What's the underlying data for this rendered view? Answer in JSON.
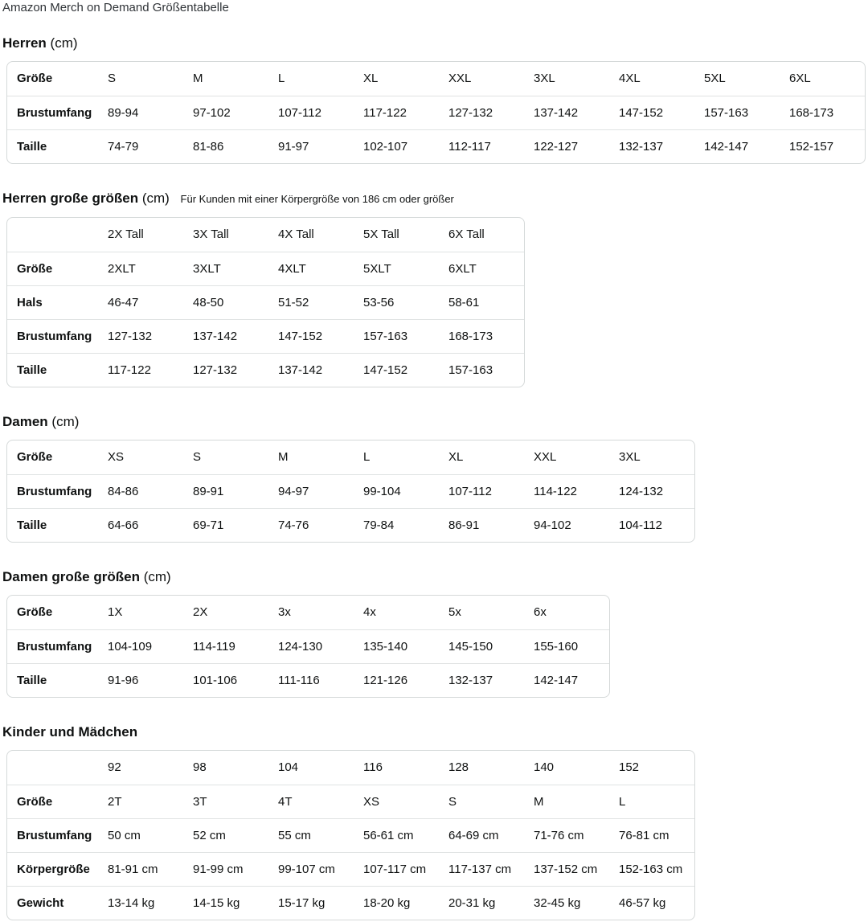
{
  "page_title": "Amazon Merch on Demand Größentabelle",
  "colors": {
    "text": "#0f1111",
    "table_border": "#d5d9d9",
    "row_divider": "#e0e3e3"
  },
  "sections": [
    {
      "title": "Herren",
      "unit": "(cm)",
      "note": "",
      "table": {
        "rows": [
          {
            "label": "Größe",
            "cells": [
              "S",
              "M",
              "L",
              "XL",
              "XXL",
              "3XL",
              "4XL",
              "5XL",
              "6XL"
            ]
          },
          {
            "label": "Brustumfang",
            "cells": [
              "89-94",
              "97-102",
              "107-112",
              "117-122",
              "127-132",
              "137-142",
              "147-152",
              "157-163",
              "168-173"
            ]
          },
          {
            "label": "Taille",
            "cells": [
              "74-79",
              "81-86",
              "91-97",
              "102-107",
              "112-117",
              "122-127",
              "132-137",
              "142-147",
              "152-157"
            ]
          }
        ]
      }
    },
    {
      "title": "Herren große größen",
      "unit": "(cm)",
      "note": "Für Kunden mit einer Körpergröße von 186 cm oder größer",
      "table": {
        "rows": [
          {
            "label": "",
            "cells": [
              "2X Tall",
              "3X Tall",
              "4X Tall",
              "5X Tall",
              "6X Tall"
            ]
          },
          {
            "label": "Größe",
            "cells": [
              "2XLT",
              "3XLT",
              "4XLT",
              "5XLT",
              "6XLT"
            ]
          },
          {
            "label": "Hals",
            "cells": [
              "46-47",
              "48-50",
              "51-52",
              "53-56",
              "58-61"
            ]
          },
          {
            "label": "Brustumfang",
            "cells": [
              "127-132",
              "137-142",
              "147-152",
              "157-163",
              "168-173"
            ]
          },
          {
            "label": "Taille",
            "cells": [
              "117-122",
              "127-132",
              "137-142",
              "147-152",
              "157-163"
            ]
          }
        ]
      }
    },
    {
      "title": "Damen",
      "unit": "(cm)",
      "note": "",
      "table": {
        "rows": [
          {
            "label": "Größe",
            "cells": [
              "XS",
              "S",
              "M",
              "L",
              "XL",
              "XXL",
              "3XL"
            ]
          },
          {
            "label": "Brustumfang",
            "cells": [
              "84-86",
              "89-91",
              "94-97",
              "99-104",
              "107-112",
              "114-122",
              "124-132"
            ]
          },
          {
            "label": "Taille",
            "cells": [
              "64-66",
              "69-71",
              "74-76",
              "79-84",
              "86-91",
              "94-102",
              "104-112"
            ]
          }
        ]
      }
    },
    {
      "title": "Damen große größen",
      "unit": "(cm)",
      "note": "",
      "table": {
        "rows": [
          {
            "label": "Größe",
            "cells": [
              "1X",
              "2X",
              "3x",
              "4x",
              "5x",
              "6x"
            ]
          },
          {
            "label": "Brustumfang",
            "cells": [
              "104-109",
              "114-119",
              "124-130",
              "135-140",
              "145-150",
              "155-160"
            ]
          },
          {
            "label": "Taille",
            "cells": [
              "91-96",
              "101-106",
              "111-116",
              "121-126",
              "132-137",
              "142-147"
            ]
          }
        ]
      }
    },
    {
      "title": "Kinder und Mädchen",
      "unit": "",
      "note": "",
      "table": {
        "rows": [
          {
            "label": "",
            "cells": [
              "92",
              "98",
              "104",
              "116",
              "128",
              "140",
              "152"
            ]
          },
          {
            "label": "Größe",
            "cells": [
              "2T",
              "3T",
              "4T",
              "XS",
              "S",
              "M",
              "L"
            ]
          },
          {
            "label": "Brustumfang",
            "cells": [
              "50 cm",
              "52 cm",
              "55 cm",
              "56-61 cm",
              "64-69 cm",
              "71-76 cm",
              "76-81 cm"
            ]
          },
          {
            "label": "Körpergröße",
            "cells": [
              "81-91 cm",
              "91-99 cm",
              "99-107 cm",
              "107-117 cm",
              "117-137 cm",
              "137-152 cm",
              "152-163 cm"
            ]
          },
          {
            "label": "Gewicht",
            "cells": [
              "13-14 kg",
              "14-15 kg",
              "15-17 kg",
              "18-20 kg",
              "20-31 kg",
              "32-45 kg",
              "46-57 kg"
            ]
          }
        ]
      }
    }
  ]
}
